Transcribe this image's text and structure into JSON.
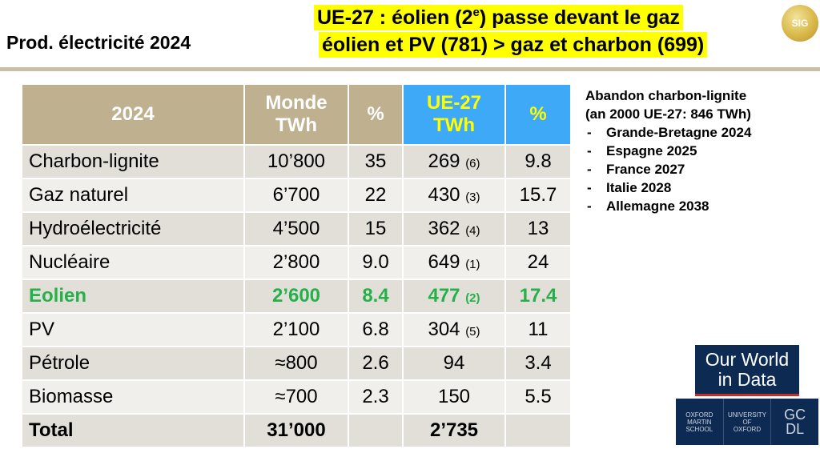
{
  "title": "Prod. électricité 2024",
  "headline": {
    "line1_before": "UE-27 : éolien (2",
    "line1_sup": "e",
    "line1_after": ") passe devant le gaz",
    "line2": "éolien et PV (781) > gaz et charbon (699)"
  },
  "logo_sig": "SIG",
  "table": {
    "headers": {
      "year": "2024",
      "world_1": "Monde",
      "world_2": "TWh",
      "pct": "%",
      "eu_1": "UE-27",
      "eu_2": "TWh",
      "eu_pct": "%"
    },
    "rows": [
      {
        "source": "Charbon-lignite",
        "world": "10’800",
        "world_pct": "35",
        "eu": "269",
        "eu_rank": "(6)",
        "eu_pct": "9.8"
      },
      {
        "source": "Gaz naturel",
        "world": "6’700",
        "world_pct": "22",
        "eu": "430",
        "eu_rank": "(3)",
        "eu_pct": "15.7"
      },
      {
        "source": "Hydroélectricité",
        "world": "4’500",
        "world_pct": "15",
        "eu": "362",
        "eu_rank": "(4)",
        "eu_pct": "13"
      },
      {
        "source": "Nucléaire",
        "world": "2’800",
        "world_pct": "9.0",
        "eu": "649",
        "eu_rank": "(1)",
        "eu_pct": "24"
      },
      {
        "source": "Eolien",
        "world": "2’600",
        "world_pct": "8.4",
        "eu": "477",
        "eu_rank": "(2)",
        "eu_pct": "17.4"
      },
      {
        "source": "PV",
        "world": "2’100",
        "world_pct": "6.8",
        "eu": "304",
        "eu_rank": "(5)",
        "eu_pct": "11"
      },
      {
        "source": "Pétrole",
        "world": "≈800",
        "world_pct": "2.6",
        "eu": "94",
        "eu_rank": "",
        "eu_pct": "3.4"
      },
      {
        "source": "Biomasse",
        "world": "≈700",
        "world_pct": "2.3",
        "eu": "150",
        "eu_rank": "",
        "eu_pct": "5.5"
      }
    ],
    "total": {
      "source": "Total",
      "world": "31’000",
      "world_pct": "",
      "eu": "2’735",
      "eu_rank": "",
      "eu_pct": ""
    }
  },
  "side": {
    "heading_1": "Abandon charbon-lignite",
    "heading_2": "(an 2000 UE-27: 846 TWh)",
    "items": [
      "Grande-Bretagne 2024",
      "Espagne 2025",
      "France 2027",
      "Italie 2028",
      "Allemagne 2038"
    ]
  },
  "owid": {
    "line1": "Our World",
    "line2": "in Data"
  },
  "partners": {
    "oms_1": "OXFORD",
    "oms_2": "MARTIN",
    "oms_3": "SCHOOL",
    "oxford_1": "UNIVERSITY OF",
    "oxford_2": "OXFORD",
    "gcdl_1": "GC",
    "gcdl_2": "DL"
  },
  "colors": {
    "highlight_green": "#26b04a",
    "header_tan": "#bfb190",
    "eu_blue": "#3da9f7",
    "headline_yellow": "#ffff00"
  }
}
